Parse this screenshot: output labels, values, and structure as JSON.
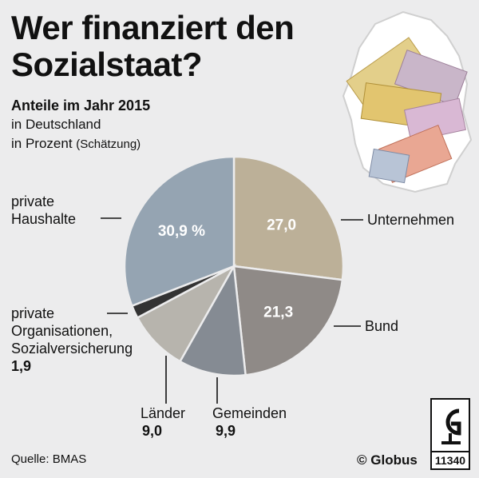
{
  "title_line1": "Wer finanziert den",
  "title_line2": "Sozialstaat?",
  "subtitle_bold": "Anteile im Jahr 2015",
  "subtitle_line2": "in Deutschland",
  "subtitle_line3": "in Prozent",
  "subtitle_note": "(Schätzung)",
  "source": "Quelle: BMAS",
  "copyright": "© Globus",
  "logo_number": "11340",
  "chart_data": {
    "type": "pie",
    "unit": "%",
    "slices": [
      {
        "label": "Unternehmen",
        "value": 27.0,
        "display": "27,0",
        "color": "#bcb098"
      },
      {
        "label": "Bund",
        "value": 21.3,
        "display": "21,3",
        "color": "#8f8a87"
      },
      {
        "label": "Gemeinden",
        "value": 9.9,
        "display": "9,9",
        "color": "#858b93"
      },
      {
        "label": "Länder",
        "value": 9.0,
        "display": "9,0",
        "color": "#b7b4ad"
      },
      {
        "label": "private Organisationen, Sozialversicherung",
        "value": 1.9,
        "display": "1,9",
        "color": "#333333"
      },
      {
        "label": "private Haushalte",
        "value": 30.9,
        "display": "30,9 %",
        "color": "#95a4b2"
      }
    ],
    "outside_labels": {
      "unternehmen": "Unternehmen",
      "bund": "Bund",
      "gemeinden": "Gemeinden",
      "gemeinden_value": "9,9",
      "laender": "Länder",
      "laender_value": "9,0",
      "private_org_line1": "private",
      "private_org_line2": "Organisationen,",
      "private_org_line3": "Sozialversicherung",
      "private_org_value": "1,9",
      "haushalte_line1": "private",
      "haushalte_line2": "Haushalte"
    }
  }
}
